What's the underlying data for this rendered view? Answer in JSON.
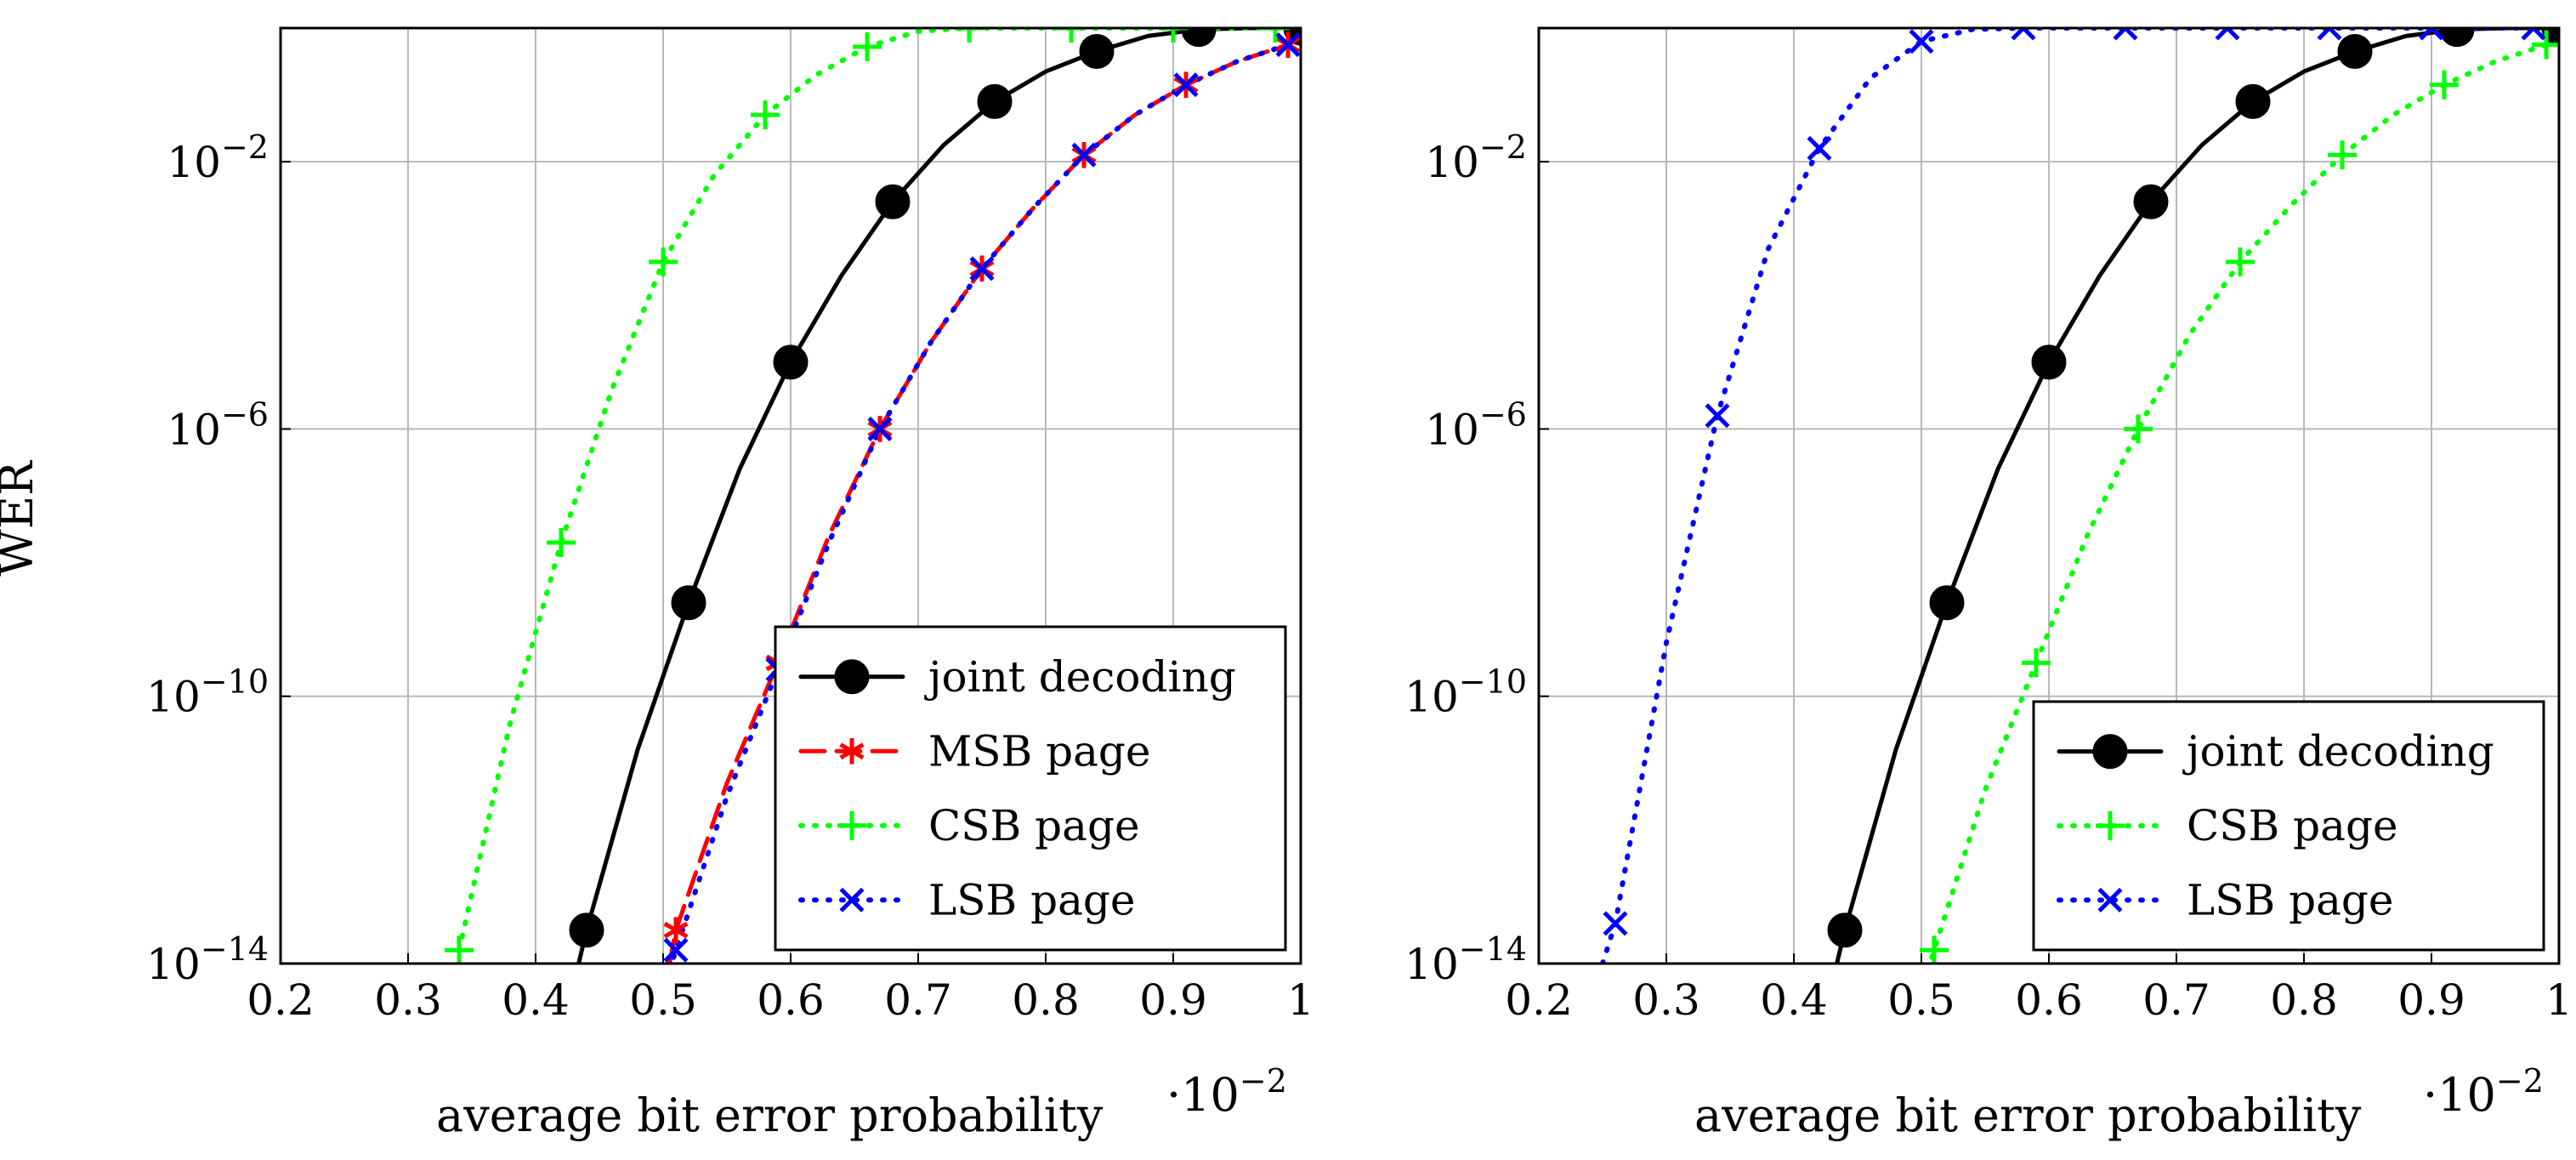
{
  "chart_data": [
    {
      "type": "line",
      "title": "",
      "xlabel": "average bit error probability",
      "x_multiplier_label": "·10",
      "x_multiplier_exp": "−2",
      "ylabel": "WER",
      "yscale": "log",
      "xlim": [
        0.2,
        1.0
      ],
      "ylim_exp": [
        -14,
        0
      ],
      "x_ticks": [
        {
          "value": 0.2,
          "label": "0.2"
        },
        {
          "value": 0.3,
          "label": "0.3"
        },
        {
          "value": 0.4,
          "label": "0.4"
        },
        {
          "value": 0.5,
          "label": "0.5"
        },
        {
          "value": 0.6,
          "label": "0.6"
        },
        {
          "value": 0.7,
          "label": "0.7"
        },
        {
          "value": 0.8,
          "label": "0.8"
        },
        {
          "value": 0.9,
          "label": "0.9"
        },
        {
          "value": 1.0,
          "label": "1"
        }
      ],
      "y_ticks": [
        {
          "exp": -2,
          "base": "10",
          "sup": "−2"
        },
        {
          "exp": -6,
          "base": "10",
          "sup": "−6"
        },
        {
          "exp": -10,
          "base": "10",
          "sup": "−10"
        },
        {
          "exp": -14,
          "base": "10",
          "sup": "−14"
        }
      ],
      "legend_position": "bottom-right",
      "series": [
        {
          "name": "joint decoding",
          "color": "#000000",
          "dash": "solid",
          "marker": "circle",
          "x": [
            0.44,
            0.52,
            0.6,
            0.68,
            0.76,
            0.84,
            0.92,
            1.0
          ],
          "log10_y": [
            -13.5,
            -8.6,
            -5.0,
            -2.6,
            -1.1,
            -0.35,
            -0.02,
            0.0
          ],
          "curve_x": [
            0.43,
            0.44,
            0.48,
            0.52,
            0.56,
            0.6,
            0.64,
            0.68,
            0.72,
            0.76,
            0.8,
            0.84,
            0.88,
            0.92,
            0.96,
            1.0
          ],
          "curve_log10_y": [
            -14.3,
            -13.5,
            -10.8,
            -8.6,
            -6.6,
            -5.0,
            -3.7,
            -2.6,
            -1.75,
            -1.1,
            -0.65,
            -0.35,
            -0.12,
            -0.02,
            0.0,
            0.0
          ]
        },
        {
          "name": "MSB page",
          "color": "#ff0000",
          "dash": "dashed",
          "marker": "asterisk",
          "x": [
            0.51,
            0.59,
            0.67,
            0.75,
            0.83,
            0.91,
            0.99
          ],
          "log10_y": [
            -13.5,
            -9.5,
            -6.0,
            -3.6,
            -1.9,
            -0.85,
            -0.25
          ],
          "curve_x": [
            0.505,
            0.51,
            0.55,
            0.59,
            0.63,
            0.67,
            0.71,
            0.75,
            0.79,
            0.83,
            0.87,
            0.91,
            0.95,
            0.99
          ],
          "curve_log10_y": [
            -14.0,
            -13.5,
            -11.3,
            -9.5,
            -7.6,
            -6.0,
            -4.7,
            -3.6,
            -2.7,
            -1.9,
            -1.3,
            -0.85,
            -0.5,
            -0.25
          ]
        },
        {
          "name": "CSB page",
          "color": "#00ff00",
          "dash": "dotted",
          "marker": "plus",
          "x": [
            0.34,
            0.42,
            0.5,
            0.58,
            0.66,
            0.74,
            0.82,
            0.9,
            0.98
          ],
          "log10_y": [
            -13.8,
            -7.7,
            -3.5,
            -1.3,
            -0.28,
            0.0,
            0.0,
            0.0,
            0.0
          ],
          "curve_x": [
            0.34,
            0.38,
            0.42,
            0.46,
            0.5,
            0.54,
            0.58,
            0.62,
            0.66,
            0.7,
            0.74,
            0.82,
            0.9,
            0.98
          ],
          "curve_log10_y": [
            -13.8,
            -10.4,
            -7.7,
            -5.4,
            -3.5,
            -2.2,
            -1.3,
            -0.7,
            -0.28,
            -0.05,
            0.0,
            0.0,
            0.0,
            0.0
          ]
        },
        {
          "name": "LSB page",
          "color": "#0000ff",
          "dash": "dotted",
          "marker": "x",
          "x": [
            0.51,
            0.59,
            0.67,
            0.75,
            0.83,
            0.91,
            0.99
          ],
          "log10_y": [
            -13.8,
            -9.6,
            -6.0,
            -3.6,
            -1.9,
            -0.85,
            -0.25
          ],
          "curve_x": [
            0.505,
            0.51,
            0.55,
            0.59,
            0.63,
            0.67,
            0.71,
            0.75,
            0.79,
            0.83,
            0.87,
            0.91,
            0.95,
            0.99
          ],
          "curve_log10_y": [
            -14.1,
            -13.8,
            -11.5,
            -9.6,
            -7.7,
            -6.0,
            -4.7,
            -3.6,
            -2.7,
            -1.9,
            -1.3,
            -0.85,
            -0.5,
            -0.25
          ]
        }
      ]
    },
    {
      "type": "line",
      "title": "",
      "xlabel": "average bit error probability",
      "x_multiplier_label": "·10",
      "x_multiplier_exp": "−2",
      "ylabel": "",
      "yscale": "log",
      "xlim": [
        0.2,
        1.0
      ],
      "ylim_exp": [
        -14,
        0
      ],
      "x_ticks": [
        {
          "value": 0.2,
          "label": "0.2"
        },
        {
          "value": 0.3,
          "label": "0.3"
        },
        {
          "value": 0.4,
          "label": "0.4"
        },
        {
          "value": 0.5,
          "label": "0.5"
        },
        {
          "value": 0.6,
          "label": "0.6"
        },
        {
          "value": 0.7,
          "label": "0.7"
        },
        {
          "value": 0.8,
          "label": "0.8"
        },
        {
          "value": 0.9,
          "label": "0.9"
        },
        {
          "value": 1.0,
          "label": "1"
        }
      ],
      "y_ticks": [
        {
          "exp": -2,
          "base": "10",
          "sup": "−2"
        },
        {
          "exp": -6,
          "base": "10",
          "sup": "−6"
        },
        {
          "exp": -10,
          "base": "10",
          "sup": "−10"
        },
        {
          "exp": -14,
          "base": "10",
          "sup": "−14"
        }
      ],
      "legend_position": "bottom-right",
      "series": [
        {
          "name": "joint decoding",
          "color": "#000000",
          "dash": "solid",
          "marker": "circle",
          "x": [
            0.44,
            0.52,
            0.6,
            0.68,
            0.76,
            0.84,
            0.92,
            1.0
          ],
          "log10_y": [
            -13.5,
            -8.6,
            -5.0,
            -2.6,
            -1.1,
            -0.35,
            -0.02,
            0.0
          ],
          "curve_x": [
            0.43,
            0.44,
            0.48,
            0.52,
            0.56,
            0.6,
            0.64,
            0.68,
            0.72,
            0.76,
            0.8,
            0.84,
            0.88,
            0.92,
            0.96,
            1.0
          ],
          "curve_log10_y": [
            -14.3,
            -13.5,
            -10.8,
            -8.6,
            -6.6,
            -5.0,
            -3.7,
            -2.6,
            -1.75,
            -1.1,
            -0.65,
            -0.35,
            -0.12,
            -0.02,
            0.0,
            0.0
          ]
        },
        {
          "name": "CSB page",
          "color": "#00ff00",
          "dash": "dotted",
          "marker": "plus",
          "x": [
            0.51,
            0.59,
            0.67,
            0.75,
            0.83,
            0.91,
            0.99
          ],
          "log10_y": [
            -13.8,
            -9.5,
            -6.0,
            -3.5,
            -1.9,
            -0.85,
            -0.25
          ],
          "curve_x": [
            0.505,
            0.51,
            0.55,
            0.59,
            0.63,
            0.67,
            0.71,
            0.75,
            0.79,
            0.83,
            0.87,
            0.91,
            0.95,
            0.99
          ],
          "curve_log10_y": [
            -14.1,
            -13.8,
            -11.4,
            -9.5,
            -7.6,
            -6.0,
            -4.6,
            -3.5,
            -2.65,
            -1.9,
            -1.3,
            -0.85,
            -0.5,
            -0.25
          ]
        },
        {
          "name": "LSB page",
          "color": "#0000ff",
          "dash": "dotted",
          "marker": "x",
          "x": [
            0.26,
            0.34,
            0.42,
            0.5,
            0.58,
            0.66,
            0.74,
            0.82,
            0.9,
            0.98
          ],
          "log10_y": [
            -13.4,
            -5.8,
            -1.8,
            -0.2,
            0.0,
            0.0,
            0.0,
            0.0,
            0.0,
            0.0
          ],
          "curve_x": [
            0.25,
            0.26,
            0.3,
            0.34,
            0.38,
            0.42,
            0.46,
            0.5,
            0.54,
            0.58,
            0.66,
            0.74,
            0.82,
            0.9,
            0.98
          ],
          "curve_log10_y": [
            -14.0,
            -13.4,
            -9.2,
            -5.8,
            -3.3,
            -1.8,
            -0.75,
            -0.2,
            -0.02,
            0.0,
            0.0,
            0.0,
            0.0,
            0.0,
            0.0
          ]
        }
      ]
    }
  ]
}
